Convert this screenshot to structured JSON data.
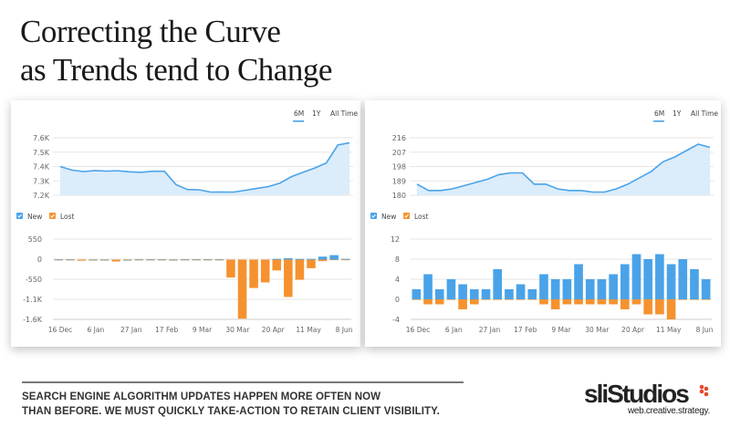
{
  "title": {
    "line1": "Correcting the Curve",
    "line2": "as Trends tend to Change"
  },
  "caption": {
    "line1": "SEARCH ENGINE ALGORITHM UPDATES HAPPEN MORE OFTEN NOW",
    "line2": "THAN BEFORE. WE MUST QUICKLY TAKE-ACTION TO RETAIN CLIENT VISIBILITY."
  },
  "logo": {
    "name": "sliStudios",
    "tagline": "web.creative.strategy.",
    "accent": "#e8492b"
  },
  "colors": {
    "new": "#4aa3e8",
    "lost": "#f5922f",
    "area": "#dbecfb",
    "line": "#4aa3e8",
    "grid": "#e6e6e6"
  },
  "tabs": [
    "6M",
    "1Y",
    "All Time"
  ],
  "active_tab": "6M",
  "legend": [
    "New",
    "Lost"
  ],
  "chart_data": [
    {
      "type": "area",
      "panel": "left",
      "x_count": 26,
      "values": [
        7400,
        7375,
        7365,
        7372,
        7368,
        7370,
        7363,
        7360,
        7367,
        7367,
        7275,
        7240,
        7238,
        7222,
        7223,
        7222,
        7235,
        7248,
        7260,
        7285,
        7330,
        7360,
        7390,
        7425,
        7550,
        7565
      ],
      "yticks": [
        "7.6K",
        "7.5K",
        "7.4K",
        "7.3K",
        "7.2K"
      ],
      "ylim": [
        7200,
        7600
      ],
      "grid": true
    },
    {
      "type": "bar",
      "panel": "left",
      "categories_ticks": [
        "16 Dec",
        "6 Jan",
        "27 Jan",
        "17 Feb",
        "9 Mar",
        "30 Mar",
        "20 Apr",
        "11 May",
        "8 Jun"
      ],
      "series": [
        {
          "name": "New",
          "values": [
            10,
            10,
            0,
            5,
            5,
            0,
            3,
            10,
            10,
            10,
            5,
            10,
            10,
            10,
            10,
            0,
            0,
            0,
            0,
            20,
            40,
            20,
            20,
            80,
            120,
            20
          ]
        },
        {
          "name": "Lost",
          "values": [
            0,
            0,
            -30,
            0,
            0,
            -50,
            0,
            0,
            0,
            0,
            0,
            0,
            0,
            0,
            0,
            -480,
            -1580,
            -760,
            -610,
            -290,
            -1000,
            -540,
            -230,
            -40,
            0,
            0
          ]
        }
      ],
      "yticks": [
        "550",
        "0",
        "-550",
        "-1.1K",
        "-1.6K"
      ],
      "ylim": [
        -1600,
        550
      ],
      "grid": true
    },
    {
      "type": "area",
      "panel": "right",
      "x_count": 26,
      "values": [
        187,
        183,
        183,
        184,
        186,
        188,
        190,
        193,
        194,
        194,
        187,
        187,
        184,
        183,
        183,
        182,
        182,
        184,
        187,
        191,
        195,
        201,
        204,
        208,
        212,
        210
      ],
      "yticks": [
        "216",
        "207",
        "198",
        "189",
        "180"
      ],
      "ylim": [
        180,
        216
      ],
      "grid": true
    },
    {
      "type": "bar",
      "panel": "right",
      "categories_ticks": [
        "16 Dec",
        "6 Jan",
        "27 Jan",
        "17 Feb",
        "9 Mar",
        "30 Mar",
        "20 Apr",
        "11 May",
        "8 Jun"
      ],
      "series": [
        {
          "name": "New",
          "values": [
            2,
            5,
            2,
            4,
            3,
            2,
            2,
            6,
            2,
            3,
            2,
            5,
            4,
            4,
            7,
            4,
            4,
            5,
            7,
            9,
            8,
            9,
            7,
            8,
            6,
            4
          ]
        },
        {
          "name": "Lost",
          "values": [
            0,
            -1,
            -1,
            0,
            -2,
            -1,
            0,
            0,
            0,
            0,
            0,
            -1,
            -2,
            -1,
            -1,
            -1,
            -1,
            -1,
            -2,
            -1,
            -3,
            -3,
            -4,
            0,
            0,
            0
          ]
        }
      ],
      "yticks": [
        "12",
        "8",
        "4",
        "0",
        "-4"
      ],
      "ylim": [
        -4,
        12
      ],
      "grid": true
    }
  ]
}
